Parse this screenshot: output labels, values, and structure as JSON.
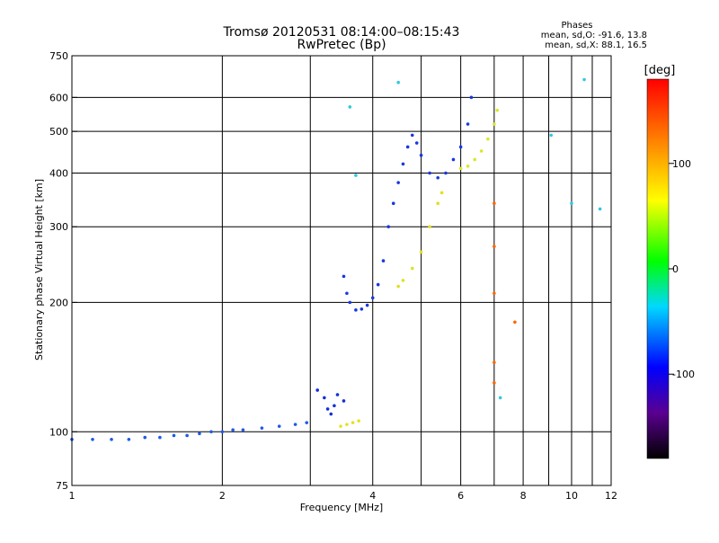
{
  "chart_data": {
    "type": "scatter",
    "title": "Tromsø 20120531 08:14:00–08:15:43",
    "subtitle": "RwPretec (Bp)",
    "xlabel": "Frequency [MHz]",
    "ylabel": "Stationary phase Virtual Height [km]",
    "x_scale": "log",
    "y_scale": "log",
    "xlim": [
      1,
      12
    ],
    "ylim": [
      75,
      750
    ],
    "x_ticks": [
      1,
      2,
      4,
      6,
      8,
      10,
      12
    ],
    "x_tick_labels": [
      "1",
      "2",
      "4",
      "6",
      "8",
      "10",
      "12"
    ],
    "x_minor_ticks": [
      3,
      5,
      7,
      9,
      11
    ],
    "y_ticks": [
      75,
      100,
      200,
      300,
      400,
      500,
      600,
      750
    ],
    "y_tick_labels": [
      "75",
      "100",
      "200",
      "300",
      "400",
      "500",
      "600",
      "750"
    ],
    "grid": true,
    "stats": {
      "heading": "Phases",
      "line_o": "mean, sd,O: -91.6, 13.8",
      "line_x": "mean, sd,X:  88.1, 16.5"
    },
    "colorbar": {
      "label": "[deg]",
      "range": [
        -180,
        180
      ],
      "ticks": [
        100,
        0,
        -100
      ],
      "tick_labels": [
        "100",
        "0",
        "-100"
      ],
      "colormap": "rainbow"
    },
    "series": [
      {
        "color": "#1e5ae6",
        "phase": -95,
        "points": [
          [
            1.0,
            96
          ],
          [
            1.1,
            96
          ],
          [
            1.2,
            96
          ],
          [
            1.3,
            96
          ],
          [
            1.4,
            97
          ],
          [
            1.5,
            97
          ],
          [
            1.6,
            98
          ],
          [
            1.7,
            98
          ],
          [
            1.8,
            99
          ],
          [
            1.9,
            100
          ],
          [
            2.0,
            100
          ],
          [
            2.1,
            101
          ],
          [
            2.2,
            101
          ],
          [
            2.4,
            102
          ],
          [
            2.6,
            103
          ],
          [
            2.8,
            104
          ],
          [
            2.95,
            105
          ]
        ]
      },
      {
        "color": "#1030d8",
        "phase": -110,
        "points": [
          [
            3.1,
            125
          ],
          [
            3.2,
            120
          ],
          [
            3.25,
            113
          ],
          [
            3.3,
            110
          ],
          [
            3.35,
            115
          ],
          [
            3.4,
            122
          ],
          [
            3.5,
            118
          ]
        ]
      },
      {
        "color": "#e8e020",
        "phase": 90,
        "points": [
          [
            3.45,
            103
          ],
          [
            3.55,
            104
          ],
          [
            3.65,
            105
          ],
          [
            3.75,
            106
          ]
        ]
      },
      {
        "color": "#1838e0",
        "phase": -100,
        "points": [
          [
            3.5,
            230
          ],
          [
            3.55,
            210
          ],
          [
            3.6,
            200
          ],
          [
            3.7,
            192
          ],
          [
            3.8,
            193
          ],
          [
            3.9,
            197
          ],
          [
            4.0,
            205
          ],
          [
            4.1,
            220
          ],
          [
            4.2,
            250
          ],
          [
            4.3,
            300
          ],
          [
            4.4,
            340
          ],
          [
            4.5,
            380
          ],
          [
            4.6,
            420
          ],
          [
            4.7,
            460
          ],
          [
            4.8,
            490
          ],
          [
            4.9,
            470
          ],
          [
            5.0,
            440
          ],
          [
            5.2,
            400
          ],
          [
            5.4,
            390
          ],
          [
            5.6,
            400
          ],
          [
            5.8,
            430
          ],
          [
            6.0,
            460
          ],
          [
            6.2,
            520
          ],
          [
            6.3,
            600
          ]
        ]
      },
      {
        "color": "#e0e020",
        "phase": 85,
        "points": [
          [
            4.5,
            218
          ],
          [
            4.6,
            225
          ],
          [
            4.8,
            240
          ],
          [
            5.0,
            262
          ],
          [
            5.2,
            300
          ],
          [
            5.4,
            340
          ],
          [
            5.5,
            360
          ]
        ]
      },
      {
        "color": "#d8e828",
        "phase": 80,
        "points": [
          [
            6.0,
            410
          ],
          [
            6.2,
            415
          ],
          [
            6.4,
            430
          ],
          [
            6.6,
            450
          ],
          [
            6.8,
            480
          ],
          [
            7.0,
            520
          ],
          [
            7.1,
            560
          ]
        ]
      },
      {
        "color": "#ff6600",
        "phase": 140,
        "points": [
          [
            7.0,
            340
          ],
          [
            7.0,
            270
          ],
          [
            7.0,
            210
          ],
          [
            7.0,
            145
          ],
          [
            7.0,
            130
          ],
          [
            7.7,
            180
          ]
        ]
      },
      {
        "color": "#30c8e0",
        "phase": -20,
        "points": [
          [
            3.6,
            570
          ],
          [
            3.7,
            395
          ],
          [
            4.5,
            650
          ],
          [
            7.2,
            120
          ],
          [
            9.1,
            490
          ],
          [
            10.0,
            340
          ],
          [
            10.6,
            660
          ],
          [
            11.4,
            330
          ]
        ]
      }
    ]
  }
}
